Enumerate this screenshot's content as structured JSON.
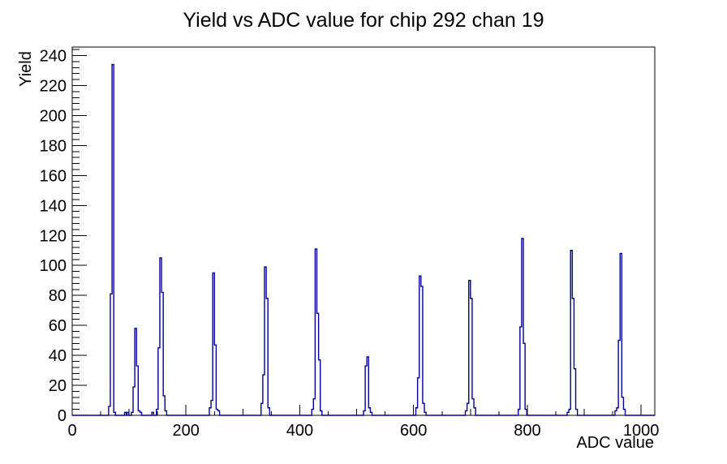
{
  "window": {
    "background": "#ffffff"
  },
  "chart_data": {
    "type": "bar",
    "title": "Yield vs ADC value for chip 292 chan 19",
    "xlabel": "ADC value",
    "ylabel": "Yield",
    "xlim": [
      0,
      1024
    ],
    "ylim": [
      0,
      245.7
    ],
    "x_major_ticks": [
      0,
      200,
      400,
      600,
      800,
      1000
    ],
    "x_medium_tick_step": 100,
    "x_minor_tick_step": 50,
    "y_major_ticks": [
      0,
      20,
      40,
      60,
      80,
      100,
      120,
      140,
      160,
      180,
      200,
      220,
      240
    ],
    "y_minor_tick_step": 4,
    "grid": "off",
    "legend": "none",
    "line_color": "#000099",
    "axis_color": "#000000",
    "bin_width": 3,
    "bins": [
      [
        64,
        6
      ],
      [
        67,
        81
      ],
      [
        70,
        234
      ],
      [
        73,
        2
      ],
      [
        92,
        2
      ],
      [
        96,
        2
      ],
      [
        104,
        2
      ],
      [
        107,
        19
      ],
      [
        110,
        58
      ],
      [
        113,
        33
      ],
      [
        116,
        3
      ],
      [
        119,
        2
      ],
      [
        140,
        2
      ],
      [
        148,
        4
      ],
      [
        151,
        45
      ],
      [
        154,
        105
      ],
      [
        157,
        82
      ],
      [
        160,
        13
      ],
      [
        163,
        3
      ],
      [
        241,
        5
      ],
      [
        244,
        10
      ],
      [
        247,
        95
      ],
      [
        250,
        47
      ],
      [
        253,
        4
      ],
      [
        256,
        3
      ],
      [
        332,
        8
      ],
      [
        335,
        27
      ],
      [
        338,
        99
      ],
      [
        341,
        78
      ],
      [
        344,
        5
      ],
      [
        421,
        4
      ],
      [
        424,
        11
      ],
      [
        427,
        111
      ],
      [
        430,
        68
      ],
      [
        433,
        37
      ],
      [
        436,
        3
      ],
      [
        512,
        3
      ],
      [
        515,
        33
      ],
      [
        518,
        39
      ],
      [
        521,
        5
      ],
      [
        524,
        2
      ],
      [
        604,
        5
      ],
      [
        607,
        25
      ],
      [
        610,
        93
      ],
      [
        613,
        86
      ],
      [
        616,
        8
      ],
      [
        619,
        2
      ],
      [
        691,
        3
      ],
      [
        694,
        8
      ],
      [
        697,
        90
      ],
      [
        700,
        78
      ],
      [
        703,
        11
      ],
      [
        706,
        5
      ],
      [
        784,
        4
      ],
      [
        787,
        59
      ],
      [
        790,
        118
      ],
      [
        793,
        48
      ],
      [
        796,
        4
      ],
      [
        870,
        2
      ],
      [
        873,
        4
      ],
      [
        876,
        110
      ],
      [
        879,
        78
      ],
      [
        882,
        31
      ],
      [
        885,
        4
      ],
      [
        954,
        3
      ],
      [
        957,
        5
      ],
      [
        960,
        50
      ],
      [
        963,
        108
      ],
      [
        966,
        12
      ],
      [
        969,
        4
      ]
    ],
    "peaks_summary": [
      {
        "adc": 70,
        "yield": 234
      },
      {
        "adc": 110,
        "yield": 58
      },
      {
        "adc": 154,
        "yield": 105
      },
      {
        "adc": 247,
        "yield": 95
      },
      {
        "adc": 338,
        "yield": 99
      },
      {
        "adc": 427,
        "yield": 111
      },
      {
        "adc": 518,
        "yield": 39
      },
      {
        "adc": 610,
        "yield": 93
      },
      {
        "adc": 697,
        "yield": 90
      },
      {
        "adc": 790,
        "yield": 118
      },
      {
        "adc": 876,
        "yield": 110
      },
      {
        "adc": 963,
        "yield": 108
      }
    ]
  }
}
